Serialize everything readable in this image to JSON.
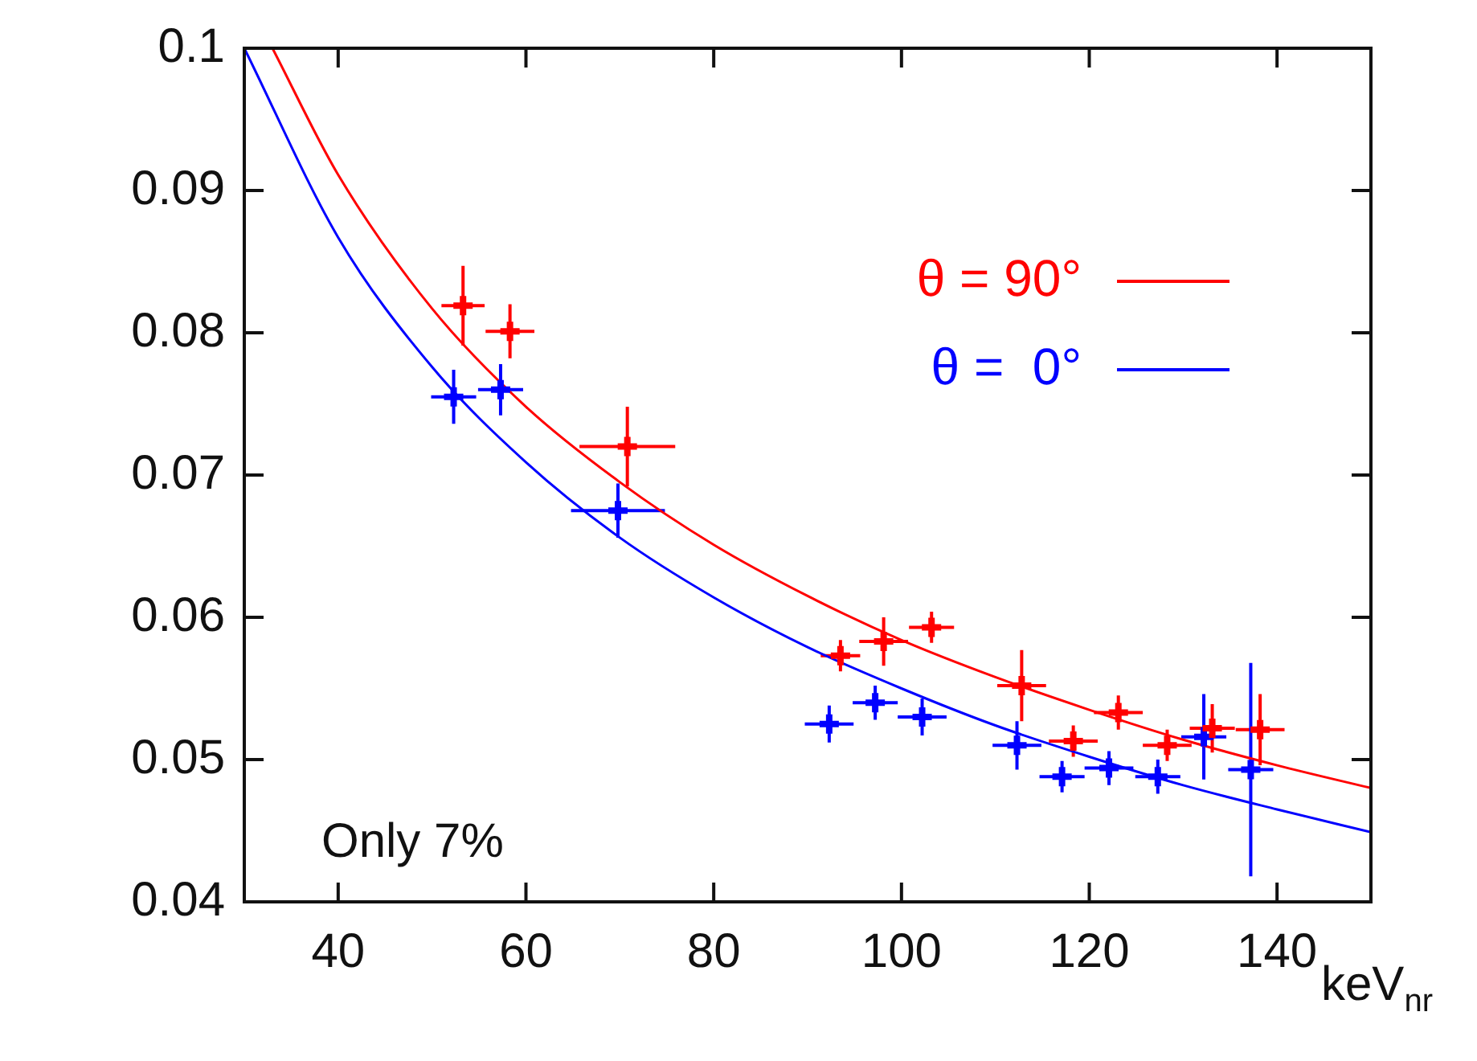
{
  "chart_data": {
    "type": "scatter",
    "xlabel": "keV$_{nr}$",
    "xlim": [
      30,
      150
    ],
    "ylim": [
      0.04,
      0.1
    ],
    "xticks": [
      40,
      60,
      80,
      100,
      120,
      140
    ],
    "yticks": [
      0.04,
      0.05,
      0.06,
      0.07,
      0.08,
      0.09,
      0.1
    ],
    "grid": false,
    "legend": "top right",
    "marker": "cross",
    "annotations": [
      "Only 7%"
    ],
    "series": [
      {
        "type": "scatter",
        "color": "#ff0000",
        "x": [
          53.3,
          58.3,
          70.8,
          93.5,
          98.1,
          103.2,
          112.8,
          118.3,
          123.1,
          128.3,
          133.1,
          138.2
        ],
        "values": [
          0.0819,
          0.0801,
          0.072,
          0.0573,
          0.0583,
          0.0593,
          0.0552,
          0.0513,
          0.0533,
          0.051,
          0.0522,
          0.0521
        ],
        "errors": [
          0.0028,
          0.0019,
          0.0028,
          0.0011,
          0.0017,
          0.0011,
          0.0025,
          0.0011,
          0.0012,
          0.0011,
          0.0017,
          0.0025
        ],
        "xerrors": [
          2.3,
          2.6,
          5.1,
          2.1,
          2.6,
          2.4,
          2.6,
          2.6,
          2.6,
          2.6,
          2.4,
          2.6
        ]
      },
      {
        "type": "scatter",
        "color": "#0000ff",
        "x": [
          52.3,
          57.3,
          69.8,
          92.3,
          97.2,
          102.2,
          112.3,
          117.1,
          122.1,
          127.3,
          132.2,
          137.2
        ],
        "values": [
          0.0755,
          0.076,
          0.0675,
          0.0525,
          0.054,
          0.053,
          0.051,
          0.0488,
          0.0494,
          0.0488,
          0.0516,
          0.0493
        ],
        "errors": [
          0.0019,
          0.0018,
          0.0019,
          0.0013,
          0.0012,
          0.0013,
          0.0017,
          0.0011,
          0.0012,
          0.0012,
          0.003,
          0.0075
        ],
        "xerrors": [
          2.4,
          2.4,
          5,
          2.6,
          2.4,
          2.6,
          2.6,
          2.4,
          2.6,
          2.4,
          2.4,
          2.4
        ]
      },
      {
        "type": "line",
        "name": "θ = 90°",
        "color": "#ff0000",
        "marker": "none",
        "x": [
          33,
          40,
          50,
          60,
          70,
          80,
          90,
          100,
          110,
          120,
          130,
          140,
          150
        ],
        "values": [
          0.1,
          0.0911,
          0.0817,
          0.0748,
          0.0695,
          0.0651,
          0.0615,
          0.0584,
          0.0558,
          0.0535,
          0.0514,
          0.0496,
          0.048
        ]
      },
      {
        "type": "line",
        "name": "θ =  0°",
        "color": "#0000ff",
        "marker": "none",
        "x": [
          30,
          40,
          50,
          60,
          70,
          80,
          90,
          100,
          110,
          120,
          130,
          140,
          150
        ],
        "values": [
          0.1,
          0.0867,
          0.0776,
          0.0709,
          0.0656,
          0.0614,
          0.0579,
          0.055,
          0.0524,
          0.0502,
          0.0482,
          0.0465,
          0.0449
        ]
      }
    ]
  }
}
